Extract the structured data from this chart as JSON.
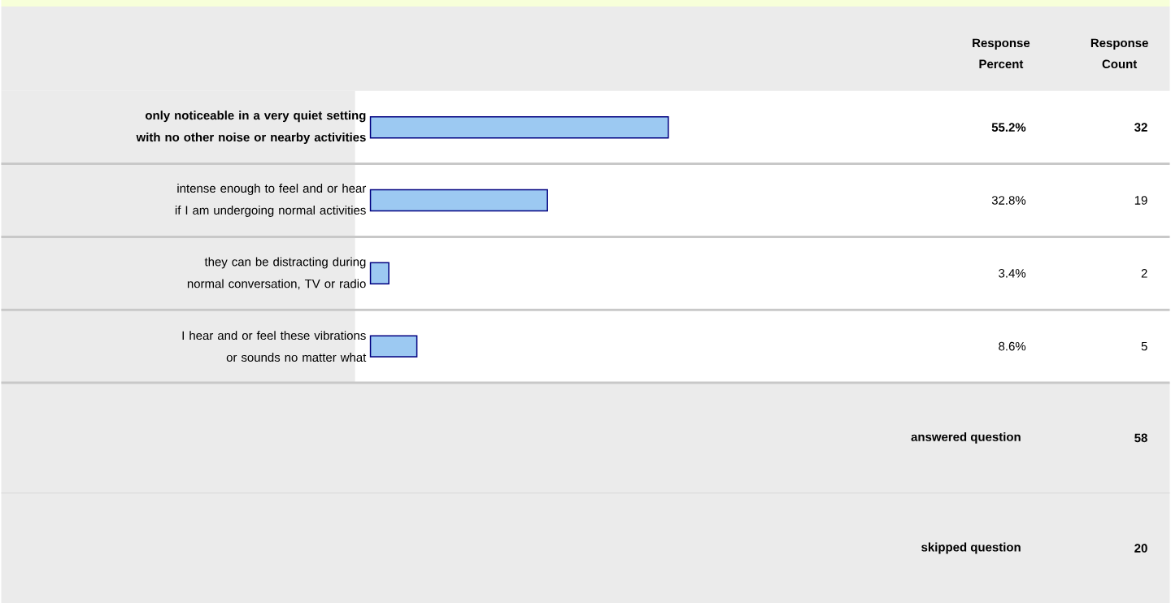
{
  "chart_data": {
    "type": "bar",
    "orientation": "horizontal",
    "tick_labels": "y",
    "categories": [
      "only noticeable in a very quiet setting with no other noise or nearby activities",
      "intense enough to feel and or hear if I am undergoing normal activities",
      "they can be distracting during normal conversation, TV or radio",
      "I hear and or feel these vibrations or sounds no matter what"
    ],
    "series": [
      {
        "color": "#9cc9f2",
        "values": [
          55.2,
          32.8,
          3.4,
          8.6
        ],
        "value_labels": [
          "55.2%",
          "32.8%",
          "3.4%",
          "8.6%"
        ]
      }
    ],
    "annotations": [
      "Response Percent",
      "Response Count",
      "32",
      "19",
      "2",
      "5",
      "answered question",
      "58",
      "skipped question",
      "20"
    ]
  }
}
